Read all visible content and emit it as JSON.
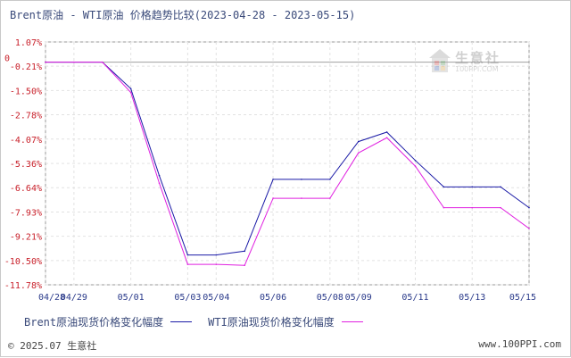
{
  "chart_data": {
    "type": "line",
    "title": "Brent原油 - WTI原油 价格趋势比较(2023-04-28 - 2023-05-15)",
    "x": [
      "04/28",
      "04/29",
      "04/30",
      "05/01",
      "05/02",
      "05/03",
      "05/04",
      "05/05",
      "05/06",
      "05/07",
      "05/08",
      "05/09",
      "05/10",
      "05/11",
      "05/12",
      "05/13",
      "05/14",
      "05/15"
    ],
    "xticks": [
      "04/28",
      "04/29",
      "05/01",
      "05/03",
      "05/04",
      "05/06",
      "05/08",
      "05/09",
      "05/11",
      "05/13",
      "05/15"
    ],
    "yticks": [
      "1.07%",
      "-0.21%",
      "-1.50%",
      "-2.78%",
      "-4.07%",
      "-5.36%",
      "-6.64%",
      "-7.93%",
      "-9.21%",
      "-10.50%",
      "-11.78%"
    ],
    "ylim": [
      -11.78,
      1.07
    ],
    "zero_label": "0",
    "series": [
      {
        "name": "Brent原油现货价格变化幅度",
        "color": "#1a1aa6",
        "values": [
          0,
          0,
          0,
          -1.4,
          -6.0,
          -10.2,
          -10.2,
          -10.0,
          -6.2,
          -6.2,
          -6.2,
          -4.2,
          -3.7,
          -5.2,
          -6.6,
          -6.6,
          -6.6,
          -7.7
        ]
      },
      {
        "name": "WTI原油现货价格变化幅度",
        "color": "#e020e0",
        "values": [
          0,
          0,
          0,
          -1.6,
          -6.4,
          -10.7,
          -10.7,
          -10.75,
          -7.2,
          -7.2,
          -7.2,
          -4.8,
          -4.0,
          -5.5,
          -7.7,
          -7.7,
          -7.7,
          -8.8
        ]
      }
    ],
    "grid": true
  },
  "footer": {
    "copyright": "© 2025.07 生意社",
    "site": "www.100PPI.com"
  },
  "watermark": {
    "text": "生意社",
    "url": "100PPI.COM"
  }
}
